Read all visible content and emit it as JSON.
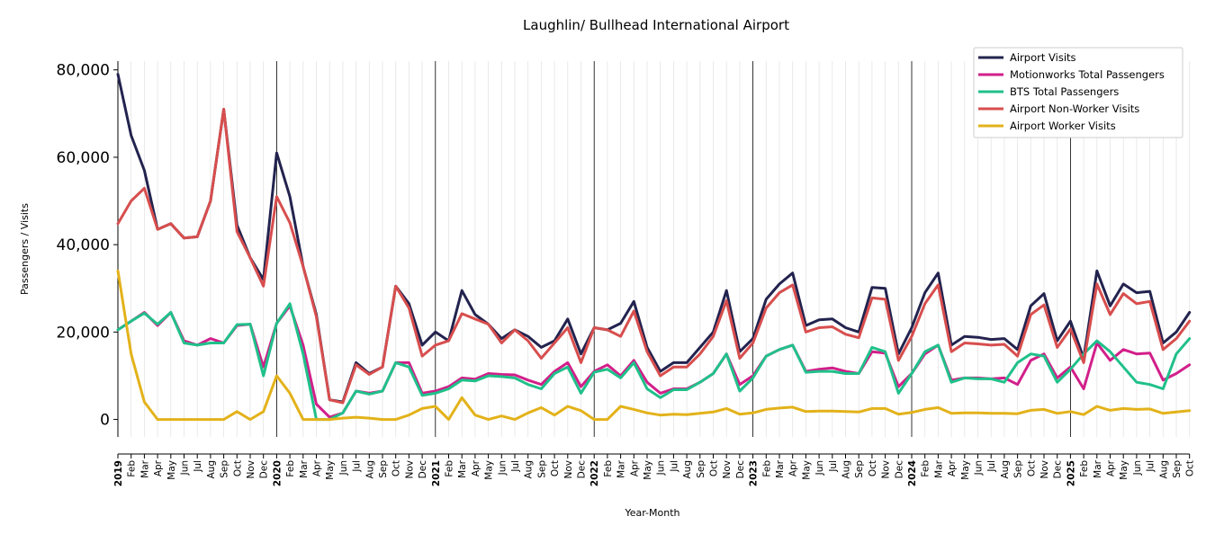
{
  "chart_data": {
    "type": "line",
    "title": "Laughlin/ Bullhead International Airport",
    "xlabel": "Year-Month",
    "ylabel": "Passengers / Visits",
    "ylim": [
      -4000,
      82000
    ],
    "yticks": [
      0,
      20000,
      40000,
      60000,
      80000
    ],
    "ytick_labels": [
      "0",
      "20,000",
      "40,000",
      "60,000",
      "80,000"
    ],
    "legend_position": "top-right",
    "grid": "minor vertical lines per month; black lines at year starts",
    "x": [
      "2019",
      "Feb",
      "Mar",
      "Apr",
      "May",
      "Jun",
      "Jul",
      "Aug",
      "Sep",
      "Oct",
      "Nov",
      "Dec",
      "2020",
      "Feb",
      "Mar",
      "Apr",
      "May",
      "Jun",
      "Jul",
      "Aug",
      "Sep",
      "Oct",
      "Nov",
      "Dec",
      "2021",
      "Feb",
      "Mar",
      "Apr",
      "May",
      "Jun",
      "Jul",
      "Aug",
      "Sep",
      "Oct",
      "Nov",
      "Dec",
      "2022",
      "Feb",
      "Mar",
      "Apr",
      "May",
      "Jun",
      "Jul",
      "Aug",
      "Sep",
      "Oct",
      "Nov",
      "Dec",
      "2023",
      "Feb",
      "Mar",
      "Apr",
      "May",
      "Jun",
      "Jul",
      "Aug",
      "Sep",
      "Oct",
      "Nov",
      "Dec",
      "2024",
      "Feb",
      "Mar",
      "Apr",
      "May",
      "Jun",
      "Jul",
      "Aug",
      "Sep",
      "Oct",
      "Nov",
      "Dec",
      "2025",
      "Feb",
      "Mar",
      "Apr",
      "May",
      "Jun",
      "Jul",
      "Aug",
      "Sep",
      "Oct"
    ],
    "series": [
      {
        "name": "Airport Visits",
        "color": "#23234f",
        "values": [
          79000,
          65000,
          57000,
          43500,
          44800,
          41500,
          41800,
          50000,
          71000,
          44500,
          37000,
          32000,
          61000,
          51000,
          35000,
          24000,
          4500,
          4000,
          13000,
          10500,
          12000,
          30500,
          26500,
          17000,
          20000,
          18000,
          29500,
          24000,
          21800,
          18500,
          20500,
          19000,
          16500,
          18000,
          23000,
          15000,
          21000,
          20500,
          22000,
          27000,
          16500,
          11000,
          13000,
          13000,
          16500,
          20000,
          29500,
          15500,
          18500,
          27500,
          31000,
          33500,
          21500,
          22800,
          23000,
          21000,
          20000,
          30200,
          30000,
          15000,
          21000,
          29000,
          33500,
          17000,
          19000,
          18800,
          18300,
          18500,
          16000,
          26000,
          28800,
          18000,
          22500,
          14000,
          34000,
          26000,
          31000,
          29000,
          29300,
          17500,
          20000,
          24500
        ]
      },
      {
        "name": "Motionworks Total Passengers",
        "color": "#d21f8a",
        "values": [
          20500,
          22500,
          24500,
          21500,
          24500,
          18000,
          17000,
          18500,
          17500,
          21500,
          21800,
          12000,
          22000,
          26000,
          17000,
          3500,
          500,
          1500,
          6500,
          6000,
          6500,
          13000,
          13000,
          6000,
          6500,
          7500,
          9500,
          9200,
          10500,
          10300,
          10200,
          9000,
          8000,
          11000,
          13000,
          7500,
          11000,
          12500,
          10000,
          13500,
          8500,
          6000,
          7000,
          7000,
          8500,
          10500,
          15000,
          8000,
          10000,
          14500,
          16000,
          17000,
          11000,
          11500,
          11800,
          11000,
          10500,
          15500,
          15200,
          7500,
          10500,
          15000,
          17000,
          9000,
          9500,
          9500,
          9300,
          9500,
          8000,
          13500,
          15000,
          9500,
          12000,
          7000,
          17500,
          13500,
          16000,
          15000,
          15200,
          9000,
          10500,
          12500
        ]
      },
      {
        "name": "BTS Total Passengers",
        "color": "#20c08a",
        "values": [
          20500,
          22500,
          24300,
          21800,
          24500,
          17500,
          17000,
          17500,
          17500,
          21700,
          21800,
          10000,
          22000,
          26500,
          15000,
          0,
          0,
          1500,
          6500,
          5800,
          6500,
          13000,
          12000,
          5500,
          6000,
          7000,
          9000,
          8800,
          10000,
          9800,
          9500,
          8000,
          7000,
          10500,
          12000,
          6000,
          10800,
          11500,
          9500,
          13000,
          7000,
          5000,
          6800,
          6800,
          8500,
          10500,
          15000,
          6500,
          9500,
          14500,
          16000,
          17000,
          10800,
          11000,
          11000,
          10500,
          10500,
          16500,
          15500,
          6000,
          10500,
          15500,
          17000,
          8500,
          9500,
          9300,
          9300,
          8500,
          13000,
          15000,
          14500,
          8500,
          11500,
          15000,
          18000,
          15500,
          12000,
          8500,
          8000,
          7000,
          15000,
          18500
        ]
      },
      {
        "name": "Airport Non-Worker Visits",
        "color": "#d84e4e",
        "values": [
          44800,
          50000,
          52900,
          43500,
          44800,
          41500,
          41800,
          50000,
          71000,
          43000,
          37000,
          30500,
          51000,
          45000,
          35000,
          23500,
          4500,
          3800,
          12500,
          10300,
          12000,
          30500,
          25500,
          14500,
          17000,
          18000,
          24200,
          23000,
          21800,
          17500,
          20500,
          18000,
          14000,
          17500,
          21000,
          13000,
          21000,
          20500,
          19000,
          24800,
          15500,
          10000,
          12000,
          12000,
          15000,
          19000,
          27200,
          14000,
          17500,
          25500,
          29000,
          30800,
          20000,
          21000,
          21200,
          19500,
          18700,
          27800,
          27500,
          13500,
          19000,
          26500,
          30800,
          15500,
          17500,
          17300,
          17000,
          17200,
          14500,
          24000,
          26200,
          16500,
          20700,
          13000,
          31000,
          24000,
          28800,
          26500,
          27000,
          16000,
          18500,
          22500
        ]
      },
      {
        "name": "Airport Worker Visits",
        "color": "#e3b21a",
        "values": [
          34000,
          15000,
          4000,
          0,
          0,
          0,
          0,
          0,
          0,
          1800,
          0,
          1800,
          10000,
          6000,
          0,
          0,
          0,
          300,
          500,
          300,
          0,
          0,
          1000,
          2500,
          3000,
          0,
          5000,
          1000,
          0,
          800,
          0,
          1500,
          2700,
          1000,
          3000,
          2000,
          0,
          0,
          3000,
          2300,
          1500,
          1000,
          1200,
          1100,
          1400,
          1700,
          2500,
          1200,
          1500,
          2300,
          2600,
          2800,
          1800,
          1900,
          1900,
          1800,
          1700,
          2500,
          2500,
          1200,
          1600,
          2300,
          2700,
          1400,
          1500,
          1500,
          1400,
          1400,
          1300,
          2100,
          2300,
          1400,
          1800,
          1100,
          3000,
          2100,
          2500,
          2300,
          2400,
          1400,
          1700,
          2000
        ]
      }
    ]
  }
}
